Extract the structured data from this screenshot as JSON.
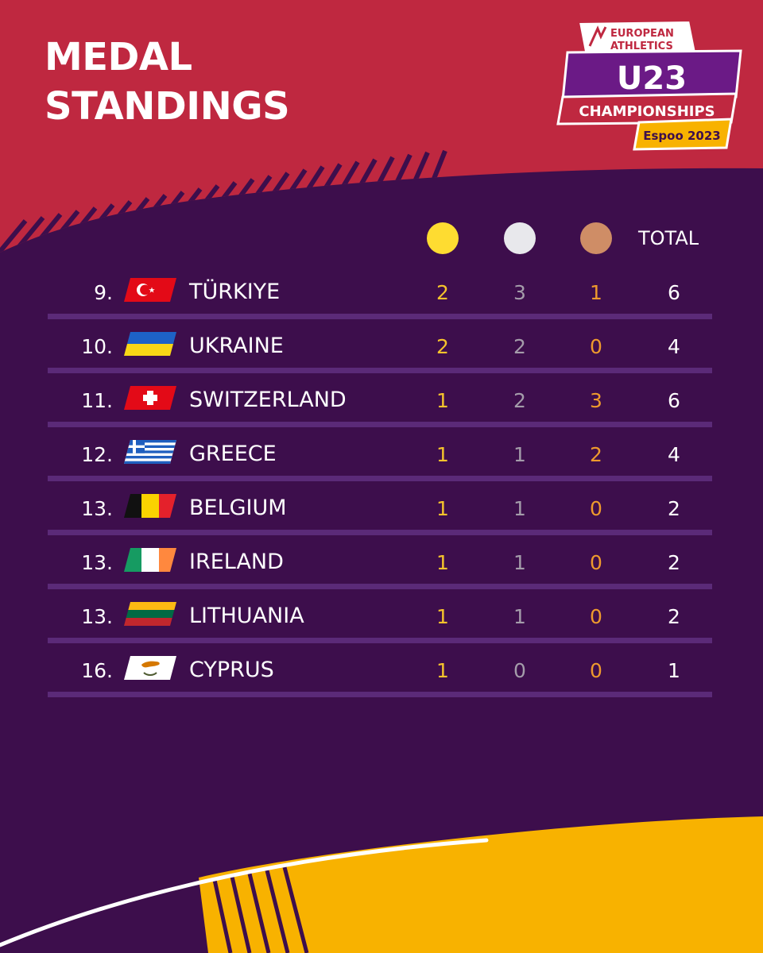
{
  "header": {
    "title_line1": "MEDAL",
    "title_line2": "STANDINGS"
  },
  "logo": {
    "line1": "EUROPEAN",
    "line2": "ATHLETICS",
    "line3": "U23",
    "line4": "CHAMPIONSHIPS",
    "line5": "Espoo 2023"
  },
  "table": {
    "total_label": "TOTAL",
    "rows": [
      {
        "rank": "9.",
        "country": "TÜRKIYE",
        "flag": "turkey-flag",
        "gold": "2",
        "silver": "3",
        "bronze": "1",
        "total": "6"
      },
      {
        "rank": "10.",
        "country": "UKRAINE",
        "flag": "ukraine-flag",
        "gold": "2",
        "silver": "2",
        "bronze": "0",
        "total": "4"
      },
      {
        "rank": "11.",
        "country": "SWITZERLAND",
        "flag": "switzerland-flag",
        "gold": "1",
        "silver": "2",
        "bronze": "3",
        "total": "6"
      },
      {
        "rank": "12.",
        "country": "GREECE",
        "flag": "greece-flag",
        "gold": "1",
        "silver": "1",
        "bronze": "2",
        "total": "4"
      },
      {
        "rank": "13.",
        "country": "BELGIUM",
        "flag": "belgium-flag",
        "gold": "1",
        "silver": "1",
        "bronze": "0",
        "total": "2"
      },
      {
        "rank": "13.",
        "country": "IRELAND",
        "flag": "ireland-flag",
        "gold": "1",
        "silver": "1",
        "bronze": "0",
        "total": "2"
      },
      {
        "rank": "13.",
        "country": "LITHUANIA",
        "flag": "lithuania-flag",
        "gold": "1",
        "silver": "1",
        "bronze": "0",
        "total": "2"
      },
      {
        "rank": "16.",
        "country": "CYPRUS",
        "flag": "cyprus-flag",
        "gold": "1",
        "silver": "0",
        "bronze": "0",
        "total": "1"
      }
    ]
  },
  "colors": {
    "red": "#bf2840",
    "purple": "#3d0e4c",
    "separator": "#5b2a78",
    "yellow": "#f8b200",
    "gold_medal": "#fedc31",
    "silver_medal": "#e8e8ec",
    "bronze_medal": "#cf8d66",
    "gold_text": "#f5c32c",
    "silver_text": "#a49caa",
    "bronze_text": "#ee9a2d"
  }
}
